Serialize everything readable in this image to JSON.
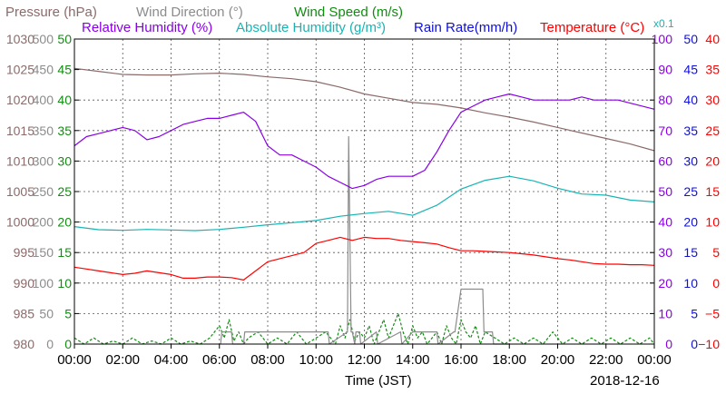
{
  "chart_data": {
    "type": "line",
    "legend": [
      {
        "label": "Pressure (hPa)",
        "color": "#8b6a6a"
      },
      {
        "label": "Wind Direction (°)",
        "color": "#8c8c8c"
      },
      {
        "label": "Wind Speed (m/s)",
        "color": "#128c12"
      },
      {
        "label": "Relative Humidity (%)",
        "color": "#8a00e6"
      },
      {
        "label": "Absolute Humidity (g/m³)",
        "color": "#18b4b4"
      },
      {
        "label": "x0.1",
        "color": "#18b4b4"
      },
      {
        "label": "Rain Rate(mm/h)",
        "color": "#1010d8"
      },
      {
        "label": "Temperature (°C)",
        "color": "#ff0000"
      }
    ],
    "xlabel": "Time (JST)",
    "date": "2018-12-16",
    "x_ticks": [
      "00:00",
      "02:00",
      "04:00",
      "06:00",
      "08:00",
      "10:00",
      "12:00",
      "14:00",
      "16:00",
      "18:00",
      "20:00",
      "22:00",
      "00:00"
    ],
    "grid": true,
    "axes": [
      {
        "name": "pressure",
        "color": "#8b6a6a",
        "ticks": [
          "1030",
          "1025",
          "1020",
          "1015",
          "1010",
          "1005",
          "1000",
          "995",
          "990",
          "985",
          "980"
        ]
      },
      {
        "name": "wind_direction",
        "color": "#8c8c8c",
        "ticks": [
          "500",
          "450",
          "400",
          "350",
          "300",
          "250",
          "200",
          "150",
          "100",
          "50",
          "0"
        ]
      },
      {
        "name": "wind_speed",
        "color": "#128c12",
        "ticks": [
          "50",
          "45",
          "40",
          "35",
          "30",
          "25",
          "20",
          "15",
          "10",
          "5",
          "0"
        ]
      },
      {
        "name": "humidity",
        "color": "#8a00e6",
        "ticks": [
          "100",
          "90",
          "80",
          "70",
          "60",
          "50",
          "40",
          "30",
          "20",
          "10",
          "0"
        ]
      },
      {
        "name": "rain",
        "color": "#1010d8",
        "ticks": [
          "50",
          "45",
          "40",
          "35",
          "30",
          "25",
          "20",
          "15",
          "10",
          "5",
          "0"
        ]
      },
      {
        "name": "temperature",
        "color": "#ff0000",
        "ticks": [
          "40",
          "35",
          "30",
          "25",
          "20",
          "15",
          "10",
          "5",
          "0",
          "−5",
          "−10"
        ]
      }
    ],
    "x_range_hours": [
      0,
      24
    ],
    "series": [
      {
        "name": "Pressure (hPa)",
        "axis": "pressure",
        "ymin": 980,
        "ymax": 1030,
        "color": "#8b6a6a",
        "x": [
          0,
          1,
          2,
          3,
          4,
          5,
          6,
          7,
          8,
          9,
          10,
          11,
          12,
          13,
          14,
          15,
          16,
          17,
          18,
          19,
          20,
          21,
          22,
          23,
          24
        ],
        "y": [
          1025.2,
          1024.7,
          1024.2,
          1024.1,
          1024.1,
          1024.3,
          1024.4,
          1024.2,
          1023.8,
          1023.5,
          1023.0,
          1022.1,
          1021.0,
          1020.3,
          1019.6,
          1019.3,
          1018.7,
          1017.9,
          1017.2,
          1016.4,
          1015.5,
          1014.6,
          1013.7,
          1012.8,
          1011.7
        ]
      },
      {
        "name": "Relative Humidity (%)",
        "axis": "humidity",
        "ymin": 0,
        "ymax": 100,
        "color": "#8a00e6",
        "x": [
          0,
          0.5,
          1,
          1.5,
          2,
          2.5,
          3,
          3.5,
          4,
          4.5,
          5,
          5.5,
          6,
          6.5,
          7,
          7.5,
          8,
          8.5,
          9,
          9.5,
          10,
          10.5,
          11,
          11.5,
          12,
          12.5,
          13,
          13.5,
          14,
          14.5,
          15,
          15.5,
          16,
          16.5,
          17,
          17.5,
          18,
          18.5,
          19,
          19.5,
          20,
          20.5,
          21,
          21.5,
          22,
          22.5,
          23,
          23.5,
          24
        ],
        "y": [
          65,
          68,
          69,
          70,
          71,
          70,
          67,
          68,
          70,
          72,
          73,
          74,
          74,
          75,
          76,
          73,
          65,
          62,
          62,
          60,
          58,
          55,
          53,
          51,
          52,
          54,
          55,
          55,
          55,
          57,
          63,
          70,
          76,
          78,
          80,
          81,
          82,
          81,
          80,
          80,
          80,
          80,
          81,
          80,
          80,
          80,
          79,
          78,
          77
        ]
      },
      {
        "name": "Absolute Humidity (g/m³)",
        "axis": "humidity",
        "ymin": 0,
        "ymax": 100,
        "color": "#18b4b4",
        "x": [
          0,
          1,
          2,
          3,
          4,
          5,
          6,
          7,
          8,
          9,
          10,
          11,
          12,
          13,
          14,
          15,
          16,
          17,
          18,
          19,
          20,
          21,
          22,
          23,
          24
        ],
        "y": [
          38.5,
          37.5,
          37.3,
          37.6,
          37.4,
          37.2,
          37.6,
          38.3,
          39.1,
          39.8,
          40.5,
          41.9,
          42.8,
          43.5,
          42.2,
          45.5,
          50.8,
          53.7,
          55.0,
          53.5,
          51.1,
          49.2,
          48.8,
          47.2,
          46.6
        ]
      },
      {
        "name": "Temperature (°C)",
        "axis": "temperature",
        "ymin": -10,
        "ymax": 40,
        "color": "#ff0000",
        "x": [
          0,
          0.5,
          1,
          1.5,
          2,
          2.5,
          3,
          3.5,
          4,
          4.5,
          5,
          5.5,
          6,
          6.5,
          7,
          7.5,
          8,
          8.5,
          9,
          9.5,
          10,
          10.5,
          11,
          11.5,
          12,
          12.5,
          13,
          13.5,
          14,
          14.5,
          15,
          15.5,
          16,
          16.5,
          17,
          17.5,
          18,
          18.5,
          19,
          19.5,
          20,
          20.5,
          21,
          21.5,
          22,
          22.5,
          23,
          23.5,
          24
        ],
        "y": [
          2.6,
          2.3,
          2.0,
          1.7,
          1.4,
          1.6,
          2.0,
          1.7,
          1.4,
          0.8,
          0.8,
          1.0,
          1.0,
          0.9,
          0.5,
          2.0,
          3.5,
          4.0,
          4.5,
          5.0,
          6.5,
          7.0,
          7.5,
          7.0,
          7.5,
          7.3,
          7.3,
          7.0,
          6.8,
          6.6,
          6.4,
          5.8,
          5.3,
          5.3,
          5.2,
          5.1,
          5.0,
          4.8,
          4.6,
          4.3,
          4.0,
          3.8,
          3.5,
          3.2,
          3.1,
          3.1,
          3.0,
          3.0,
          2.9
        ]
      },
      {
        "name": "Wind Direction (°)",
        "axis": "wind_direction",
        "ymin": 0,
        "ymax": 500,
        "color": "#8c8c8c",
        "x": [
          6.05,
          6.1,
          6.5,
          6.55,
          7.0,
          7.05,
          10.5,
          10.55,
          11.3,
          11.35,
          11.45,
          11.5,
          11.6,
          11.65,
          11.8,
          11.85,
          12.5,
          12.55,
          13.5,
          13.55,
          14.0,
          14.05,
          15.0,
          15.05,
          15.7,
          15.75,
          16.0,
          16.05,
          16.2,
          16.25,
          16.9,
          16.95,
          17.3,
          17.35,
          18.0
        ],
        "y": [
          0,
          20,
          20,
          0,
          0,
          20,
          20,
          0,
          20,
          340,
          20,
          20,
          0,
          20,
          20,
          0,
          20,
          0,
          20,
          0,
          20,
          20,
          20,
          0,
          20,
          20,
          90,
          90,
          90,
          90,
          90,
          20,
          20,
          0,
          0
        ]
      },
      {
        "name": "Wind Speed (m/s)",
        "axis": "wind_speed",
        "ymin": 0,
        "ymax": 50,
        "color": "#128c12",
        "x": [
          0,
          0.4,
          0.8,
          1.2,
          1.6,
          2.0,
          2.4,
          2.8,
          3.2,
          3.6,
          4.0,
          4.4,
          4.8,
          5.2,
          5.6,
          6.0,
          6.2,
          6.4,
          6.6,
          6.8,
          7.0,
          7.2,
          7.6,
          8.0,
          8.4,
          8.8,
          9.2,
          9.6,
          10.0,
          10.4,
          10.8,
          11.0,
          11.2,
          11.4,
          11.6,
          11.8,
          12.0,
          12.2,
          12.4,
          12.6,
          12.8,
          13.0,
          13.2,
          13.4,
          13.6,
          13.8,
          14.0,
          14.2,
          14.4,
          14.6,
          14.8,
          15.0,
          15.2,
          15.4,
          15.6,
          15.8,
          16.0,
          16.2,
          16.4,
          16.6,
          16.8,
          17.0,
          17.4,
          17.8,
          18.2,
          18.6,
          19.0,
          19.4,
          19.8,
          20.2,
          20.6,
          21.0,
          21.4,
          21.8,
          22.2,
          22.6,
          23.0,
          23.4,
          23.8,
          24
        ],
        "y": [
          1,
          0,
          1,
          0,
          0.5,
          0,
          1,
          0,
          0.5,
          0,
          1,
          0,
          0.5,
          0,
          1,
          3,
          1,
          4,
          0.5,
          2,
          0,
          1,
          2,
          0,
          1,
          0,
          2,
          0,
          1,
          2,
          0,
          3,
          1,
          4,
          0.5,
          2,
          1,
          3,
          0,
          2,
          4,
          1,
          3,
          5,
          2,
          0,
          3,
          1,
          2,
          0,
          1,
          2,
          0,
          3,
          1,
          0,
          4,
          2,
          1,
          3,
          0,
          2,
          1,
          0,
          1,
          0,
          1,
          0,
          2,
          0,
          1,
          0,
          1,
          0,
          1,
          0,
          1,
          0,
          1,
          0
        ]
      }
    ]
  }
}
